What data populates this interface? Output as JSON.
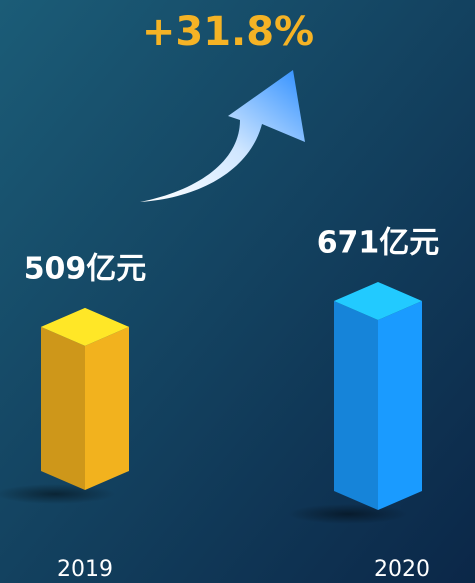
{
  "chart_data": {
    "type": "bar3d",
    "annotation": "+31.8%",
    "categories": [
      "2019",
      "2020"
    ],
    "values": [
      509,
      671
    ],
    "value_labels": [
      "509亿元",
      "671亿元"
    ],
    "colors": [
      "#f2b21e",
      "#1a9bff"
    ]
  }
}
